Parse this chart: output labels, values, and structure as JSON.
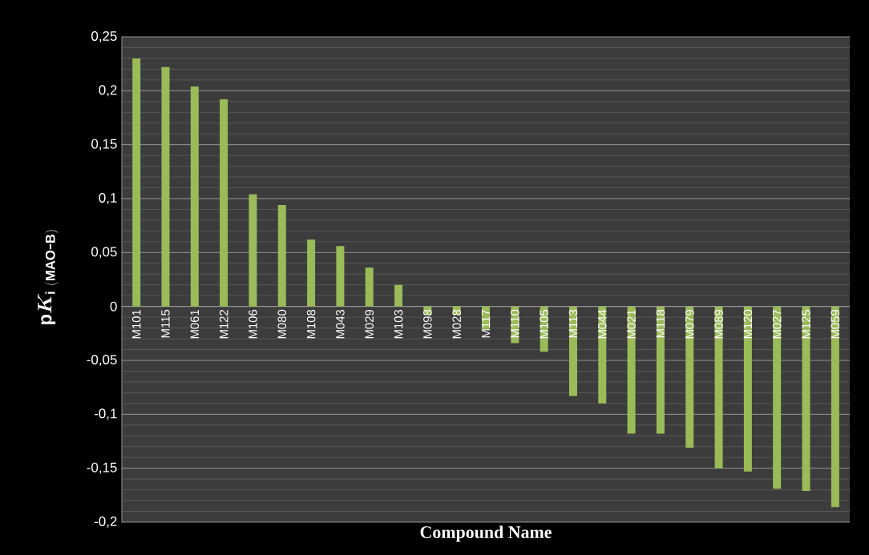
{
  "chart_data": {
    "type": "bar",
    "xlabel": "Compound Name",
    "ylabel": "\\mathbf{p}\\bm{K}_{\\mathbf{i\\ (MAO\\mbox{-}B)}}",
    "categories": [
      "M101",
      "M115",
      "M061",
      "M122",
      "M106",
      "M080",
      "M108",
      "M043",
      "M029",
      "M103",
      "M098",
      "M028",
      "M117",
      "M110",
      "M105",
      "M113",
      "M044",
      "M021",
      "M118",
      "M079",
      "M089",
      "M120",
      "M027",
      "M125",
      "M059"
    ],
    "values": [
      0.23,
      0.222,
      0.204,
      0.192,
      0.104,
      0.094,
      0.062,
      0.056,
      0.036,
      0.02,
      -0.008,
      -0.008,
      -0.021,
      -0.034,
      -0.042,
      -0.083,
      -0.09,
      -0.118,
      -0.118,
      -0.131,
      -0.15,
      -0.153,
      -0.169,
      -0.171,
      -0.186
    ],
    "color": "#9bbb59",
    "ylim": [
      -0.2,
      0.25
    ],
    "yticks": [
      {
        "value": -0.2,
        "label": "-0,2"
      },
      {
        "value": -0.15,
        "label": "-0,15"
      },
      {
        "value": -0.1,
        "label": "-0,1"
      },
      {
        "value": -0.05,
        "label": "-0,05"
      },
      {
        "value": 0,
        "label": "0"
      },
      {
        "value": 0.05,
        "label": "0,05"
      },
      {
        "value": 0.1,
        "label": "0,1"
      },
      {
        "value": 0.15,
        "label": "0,15"
      },
      {
        "value": 0.2,
        "label": "0,2"
      },
      {
        "value": 0.25,
        "label": "0,25"
      }
    ],
    "grid": "y"
  }
}
